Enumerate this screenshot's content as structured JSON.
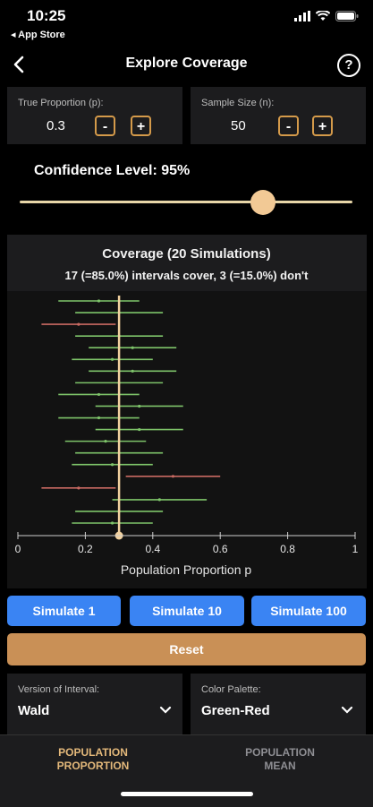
{
  "status": {
    "time": "10:25",
    "back_app": "◂ App Store"
  },
  "nav": {
    "title": "Explore Coverage",
    "help": "?"
  },
  "proportion": {
    "label": "True Proportion (p):",
    "value": "0.3",
    "minus": "-",
    "plus": "+"
  },
  "sample": {
    "label": "Sample Size (n):",
    "value": "50",
    "minus": "-",
    "plus": "+"
  },
  "confidence": {
    "label": "Confidence Level: 95%",
    "value_percent": 95,
    "slider_fraction": 0.73
  },
  "chart_data": {
    "type": "interval",
    "title": "Coverage (20 Simulations)",
    "subtitle": "17 (=85.0%) intervals cover, 3 (=15.0%) don't",
    "xlabel": "Population Proportion p",
    "xlim": [
      0,
      1
    ],
    "xticks": [
      "0",
      "0.2",
      "0.4",
      "0.6",
      "0.8",
      "1"
    ],
    "true_p": 0.3,
    "cover_color": "#7ec46a",
    "miss_color": "#c96a62",
    "true_line_color": "#f2d2a0",
    "intervals": [
      {
        "est": 0.24,
        "low": 0.12,
        "high": 0.36,
        "covers": true
      },
      {
        "est": 0.3,
        "low": 0.17,
        "high": 0.43,
        "covers": true
      },
      {
        "est": 0.18,
        "low": 0.07,
        "high": 0.29,
        "covers": false
      },
      {
        "est": 0.3,
        "low": 0.17,
        "high": 0.43,
        "covers": true
      },
      {
        "est": 0.34,
        "low": 0.21,
        "high": 0.47,
        "covers": true
      },
      {
        "est": 0.28,
        "low": 0.16,
        "high": 0.4,
        "covers": true
      },
      {
        "est": 0.34,
        "low": 0.21,
        "high": 0.47,
        "covers": true
      },
      {
        "est": 0.3,
        "low": 0.17,
        "high": 0.43,
        "covers": true
      },
      {
        "est": 0.24,
        "low": 0.12,
        "high": 0.36,
        "covers": true
      },
      {
        "est": 0.36,
        "low": 0.23,
        "high": 0.49,
        "covers": true
      },
      {
        "est": 0.24,
        "low": 0.12,
        "high": 0.36,
        "covers": true
      },
      {
        "est": 0.36,
        "low": 0.23,
        "high": 0.49,
        "covers": true
      },
      {
        "est": 0.26,
        "low": 0.14,
        "high": 0.38,
        "covers": true
      },
      {
        "est": 0.3,
        "low": 0.17,
        "high": 0.43,
        "covers": true
      },
      {
        "est": 0.28,
        "low": 0.16,
        "high": 0.4,
        "covers": true
      },
      {
        "est": 0.46,
        "low": 0.32,
        "high": 0.6,
        "covers": false
      },
      {
        "est": 0.18,
        "low": 0.07,
        "high": 0.29,
        "covers": false
      },
      {
        "est": 0.42,
        "low": 0.28,
        "high": 0.56,
        "covers": true
      },
      {
        "est": 0.3,
        "low": 0.17,
        "high": 0.43,
        "covers": true
      },
      {
        "est": 0.28,
        "low": 0.16,
        "high": 0.4,
        "covers": true
      }
    ]
  },
  "buttons": {
    "sim1": "Simulate 1",
    "sim10": "Simulate 10",
    "sim100": "Simulate 100",
    "reset": "Reset"
  },
  "dropdowns": {
    "version": {
      "label": "Version of Interval:",
      "value": "Wald"
    },
    "palette": {
      "label": "Color Palette:",
      "value": "Green-Red"
    }
  },
  "tabs": {
    "proportion": {
      "line1": "POPULATION",
      "line2": "PROPORTION",
      "color": "#e3b87a"
    },
    "mean": {
      "line1": "POPULATION",
      "line2": "MEAN",
      "color": "#8e8e93"
    }
  }
}
